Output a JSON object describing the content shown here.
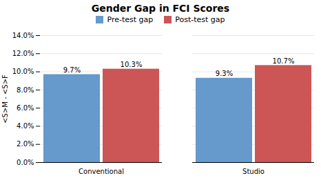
{
  "chart_data": {
    "type": "bar",
    "title": "Gender Gap in FCI Scores",
    "categories": [
      "Conventional",
      "Studio"
    ],
    "series": [
      {
        "name": "Pre-test gap",
        "color": "#6699CC",
        "values": [
          0.097,
          0.093
        ],
        "value_labels": [
          "9.7%",
          "9.3%"
        ]
      },
      {
        "name": "Post-test gap",
        "color": "#CC5555",
        "values": [
          0.103,
          0.107
        ],
        "value_labels": [
          "10.3%",
          "10.7%"
        ]
      }
    ],
    "ylabel": "<S>M - <S>F",
    "ylim": [
      0,
      0.14
    ],
    "yticks": [
      {
        "value": 0.0,
        "label": "0.0%"
      },
      {
        "value": 0.02,
        "label": "2.0%"
      },
      {
        "value": 0.04,
        "label": "4.0%"
      },
      {
        "value": 0.06,
        "label": "6.0%"
      },
      {
        "value": 0.08,
        "label": "8.0%"
      },
      {
        "value": 0.1,
        "label": "10.0%"
      },
      {
        "value": 0.12,
        "label": "12.0%"
      },
      {
        "value": 0.14,
        "label": "14.0%"
      }
    ],
    "grid": true,
    "legend": "top",
    "data_labels": true
  }
}
